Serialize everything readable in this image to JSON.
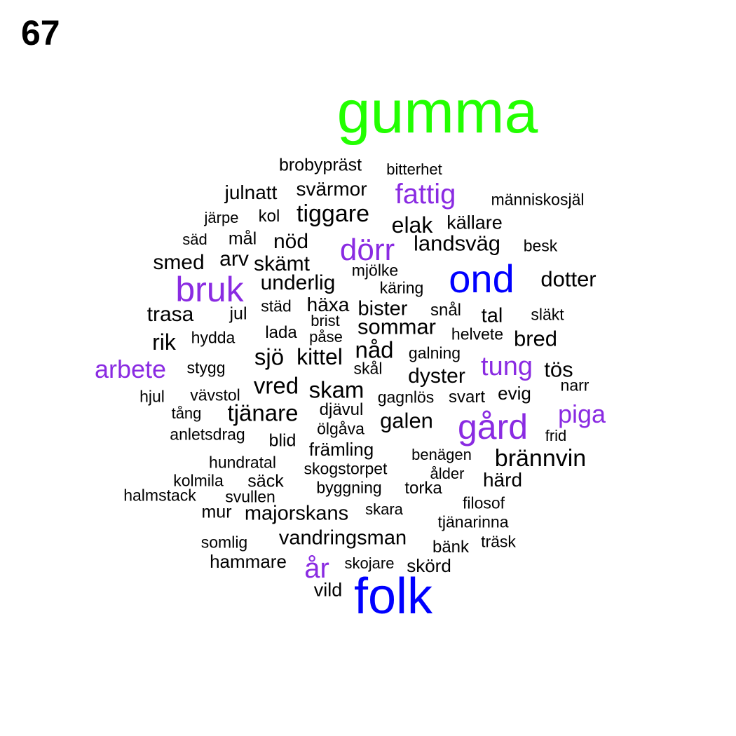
{
  "page_number": "67",
  "colors": {
    "green": "#22ff00",
    "blue": "#0000ff",
    "purple": "#8a2be2",
    "black": "#000000"
  },
  "words": [
    {
      "text": "gumma",
      "color": "green",
      "size": 5
    },
    {
      "text": "folk",
      "color": "blue",
      "size": 4
    },
    {
      "text": "ond",
      "color": "blue",
      "size": 4
    },
    {
      "text": "bruk",
      "color": "purple",
      "size": 3
    },
    {
      "text": "gård",
      "color": "purple",
      "size": 3
    },
    {
      "text": "dörr",
      "color": "purple",
      "size": 3
    },
    {
      "text": "fattig",
      "color": "purple",
      "size": 3
    },
    {
      "text": "tung",
      "color": "purple",
      "size": 3
    },
    {
      "text": "arbete",
      "color": "purple",
      "size": 3
    },
    {
      "text": "piga",
      "color": "purple",
      "size": 3
    },
    {
      "text": "år",
      "color": "purple",
      "size": 3
    },
    {
      "text": "brobypräst",
      "color": "black",
      "size": 1
    },
    {
      "text": "bitterhet",
      "color": "black",
      "size": 1
    },
    {
      "text": "julnatt",
      "color": "black",
      "size": 2
    },
    {
      "text": "svärmor",
      "color": "black",
      "size": 2
    },
    {
      "text": "människosjäl",
      "color": "black",
      "size": 1
    },
    {
      "text": "järpe",
      "color": "black",
      "size": 1
    },
    {
      "text": "kol",
      "color": "black",
      "size": 1
    },
    {
      "text": "tiggare",
      "color": "black",
      "size": 2
    },
    {
      "text": "elak",
      "color": "black",
      "size": 2
    },
    {
      "text": "källare",
      "color": "black",
      "size": 1
    },
    {
      "text": "säd",
      "color": "black",
      "size": 1
    },
    {
      "text": "mål",
      "color": "black",
      "size": 1
    },
    {
      "text": "nöd",
      "color": "black",
      "size": 2
    },
    {
      "text": "landsväg",
      "color": "black",
      "size": 2
    },
    {
      "text": "besk",
      "color": "black",
      "size": 1
    },
    {
      "text": "smed",
      "color": "black",
      "size": 2
    },
    {
      "text": "arv",
      "color": "black",
      "size": 2
    },
    {
      "text": "skämt",
      "color": "black",
      "size": 2
    },
    {
      "text": "mjölke",
      "color": "black",
      "size": 1
    },
    {
      "text": "dotter",
      "color": "black",
      "size": 2
    },
    {
      "text": "underlig",
      "color": "black",
      "size": 2
    },
    {
      "text": "käring",
      "color": "black",
      "size": 1
    },
    {
      "text": "trasa",
      "color": "black",
      "size": 2
    },
    {
      "text": "jul",
      "color": "black",
      "size": 1
    },
    {
      "text": "städ",
      "color": "black",
      "size": 1
    },
    {
      "text": "häxa",
      "color": "black",
      "size": 2
    },
    {
      "text": "bister",
      "color": "black",
      "size": 2
    },
    {
      "text": "snål",
      "color": "black",
      "size": 1
    },
    {
      "text": "tal",
      "color": "black",
      "size": 2
    },
    {
      "text": "släkt",
      "color": "black",
      "size": 1
    },
    {
      "text": "brist",
      "color": "black",
      "size": 1
    },
    {
      "text": "sommar",
      "color": "black",
      "size": 2
    },
    {
      "text": "rik",
      "color": "black",
      "size": 2
    },
    {
      "text": "hydda",
      "color": "black",
      "size": 1
    },
    {
      "text": "lada",
      "color": "black",
      "size": 1
    },
    {
      "text": "påse",
      "color": "black",
      "size": 1
    },
    {
      "text": "helvete",
      "color": "black",
      "size": 1
    },
    {
      "text": "bred",
      "color": "black",
      "size": 2
    },
    {
      "text": "nåd",
      "color": "black",
      "size": 2
    },
    {
      "text": "sjö",
      "color": "black",
      "size": 2
    },
    {
      "text": "kittel",
      "color": "black",
      "size": 2
    },
    {
      "text": "galning",
      "color": "black",
      "size": 1
    },
    {
      "text": "stygg",
      "color": "black",
      "size": 1
    },
    {
      "text": "skål",
      "color": "black",
      "size": 1
    },
    {
      "text": "tös",
      "color": "black",
      "size": 2
    },
    {
      "text": "dyster",
      "color": "black",
      "size": 2
    },
    {
      "text": "narr",
      "color": "black",
      "size": 1
    },
    {
      "text": "vred",
      "color": "black",
      "size": 2
    },
    {
      "text": "skam",
      "color": "black",
      "size": 2
    },
    {
      "text": "hjul",
      "color": "black",
      "size": 1
    },
    {
      "text": "vävstol",
      "color": "black",
      "size": 1
    },
    {
      "text": "gagnlös",
      "color": "black",
      "size": 1
    },
    {
      "text": "svart",
      "color": "black",
      "size": 1
    },
    {
      "text": "evig",
      "color": "black",
      "size": 1
    },
    {
      "text": "tång",
      "color": "black",
      "size": 1
    },
    {
      "text": "tjänare",
      "color": "black",
      "size": 2
    },
    {
      "text": "djävul",
      "color": "black",
      "size": 1
    },
    {
      "text": "galen",
      "color": "black",
      "size": 2
    },
    {
      "text": "ölgåva",
      "color": "black",
      "size": 1
    },
    {
      "text": "anletsdrag",
      "color": "black",
      "size": 1
    },
    {
      "text": "blid",
      "color": "black",
      "size": 1
    },
    {
      "text": "frid",
      "color": "black",
      "size": 1
    },
    {
      "text": "främling",
      "color": "black",
      "size": 1
    },
    {
      "text": "benägen",
      "color": "black",
      "size": 1
    },
    {
      "text": "brännvin",
      "color": "black",
      "size": 2
    },
    {
      "text": "hundratal",
      "color": "black",
      "size": 1
    },
    {
      "text": "skogstorpet",
      "color": "black",
      "size": 1
    },
    {
      "text": "ålder",
      "color": "black",
      "size": 1
    },
    {
      "text": "kolmila",
      "color": "black",
      "size": 1
    },
    {
      "text": "säck",
      "color": "black",
      "size": 1
    },
    {
      "text": "härd",
      "color": "black",
      "size": 2
    },
    {
      "text": "byggning",
      "color": "black",
      "size": 1
    },
    {
      "text": "torka",
      "color": "black",
      "size": 1
    },
    {
      "text": "halmstack",
      "color": "black",
      "size": 1
    },
    {
      "text": "svullen",
      "color": "black",
      "size": 1
    },
    {
      "text": "filosof",
      "color": "black",
      "size": 1
    },
    {
      "text": "mur",
      "color": "black",
      "size": 1
    },
    {
      "text": "majorskans",
      "color": "black",
      "size": 2
    },
    {
      "text": "skara",
      "color": "black",
      "size": 1
    },
    {
      "text": "tjänarinna",
      "color": "black",
      "size": 1
    },
    {
      "text": "vandringsman",
      "color": "black",
      "size": 2
    },
    {
      "text": "somlig",
      "color": "black",
      "size": 1
    },
    {
      "text": "bänk",
      "color": "black",
      "size": 1
    },
    {
      "text": "träsk",
      "color": "black",
      "size": 1
    },
    {
      "text": "hammare",
      "color": "black",
      "size": 1
    },
    {
      "text": "skojare",
      "color": "black",
      "size": 1
    },
    {
      "text": "skörd",
      "color": "black",
      "size": 1
    },
    {
      "text": "vild",
      "color": "black",
      "size": 1
    }
  ]
}
